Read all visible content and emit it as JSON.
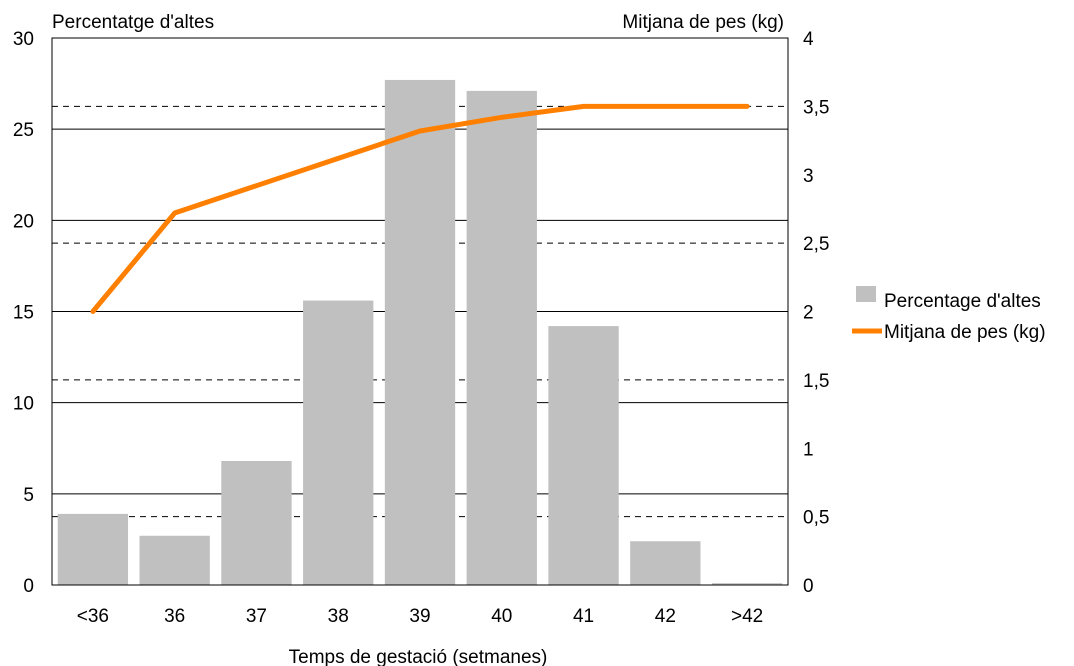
{
  "chart_data": {
    "type": "bar",
    "categories": [
      "<36",
      "36",
      "37",
      "38",
      "39",
      "40",
      "41",
      "42",
      ">42"
    ],
    "series": [
      {
        "name": "Percentage d'altes",
        "type": "bar",
        "axis": "left",
        "color": "#c0c0c0",
        "values": [
          3.9,
          2.7,
          6.8,
          15.6,
          27.7,
          27.1,
          14.2,
          2.4,
          0.1
        ]
      },
      {
        "name": "Mitjana de pes (kg)",
        "type": "line",
        "axis": "right",
        "color": "#ff8000",
        "values": [
          2.0,
          2.72,
          2.92,
          3.12,
          3.32,
          3.42,
          3.5,
          3.5,
          3.5
        ]
      }
    ],
    "xlabel": "Temps de gestació (setmanes)",
    "ylabel_left": "Percentatge d'altes",
    "ylabel_right": "Mitjana de pes (kg)",
    "ylim_left": [
      0,
      30
    ],
    "yticks_left": [
      "0",
      "5",
      "10",
      "15",
      "20",
      "25",
      "30"
    ],
    "ylim_right": [
      0,
      4
    ],
    "yticks_right": [
      "0",
      "0,5",
      "1",
      "1,5",
      "2",
      "2,5",
      "3",
      "3,5",
      "4"
    ],
    "grid": "solid at left ticks, dashed at right ticks",
    "legend_position": "right"
  }
}
